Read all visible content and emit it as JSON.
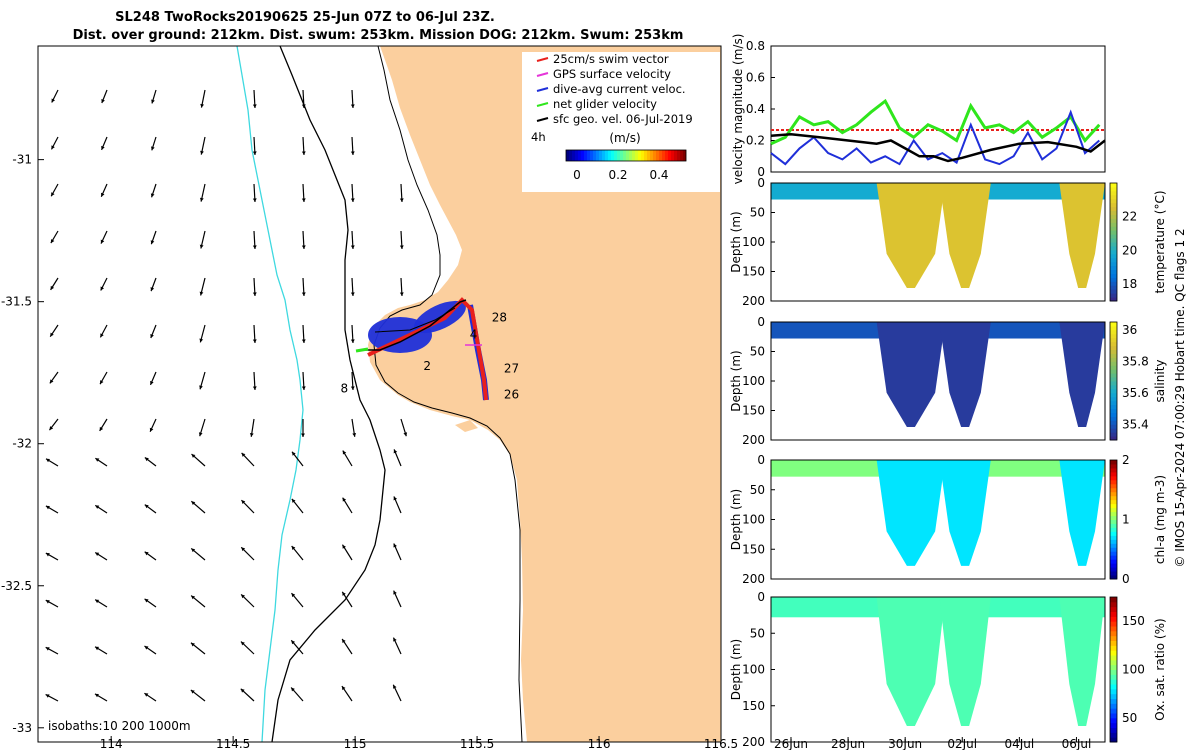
{
  "title": {
    "line1": "SL248 TwoRocks20190625 25-Jun 07Z to 06-Jul 23Z.",
    "line2": "Dist. over ground: 212km. Dist. swum: 253km. Mission DOG: 212km. Swum: 253km"
  },
  "colors": {
    "land": "#fbcf9e",
    "isobath_shallow": "#3fd9e0",
    "isobath_deep": "#000000",
    "swim_vector": "#e8201c",
    "gps_velocity": "#e535d8",
    "dive_avg_current": "#1f2fd9",
    "net_glider_velocity": "#2fe61c",
    "sfc_geo_velocity": "#000000"
  },
  "map": {
    "xlim": [
      113.7,
      116.5
    ],
    "ylim": [
      -33.05,
      -30.6
    ],
    "xticks": [
      114,
      114.5,
      115,
      115.5,
      116,
      116.5
    ],
    "xtick_labels": [
      "114",
      "114.5",
      "115",
      "115.5",
      "116",
      "116.5"
    ],
    "yticks": [
      -31,
      -31.5,
      -32,
      -32.5,
      -33
    ],
    "ytick_labels": [
      "-31",
      "-31.5",
      "-32",
      "-32.5",
      "-33"
    ],
    "legend": [
      "25cm/s swim vector",
      "GPS surface velocity",
      "dive-avg current veloc.",
      "net glider velocity",
      "sfc geo. vel. 06-Jul-2019"
    ],
    "colorbar_unit": "(m/s)",
    "colorbar_ticks": [
      "0",
      "0.2",
      "0.4"
    ],
    "time_step_label": "4h",
    "isobath_note": "isobaths:10   200  1000m",
    "track_day_labels": [
      {
        "text": "28",
        "lon": 115.56,
        "lat": -31.57
      },
      {
        "text": "4",
        "lon": 115.47,
        "lat": -31.63
      },
      {
        "text": "2",
        "lon": 115.28,
        "lat": -31.74
      },
      {
        "text": "27",
        "lon": 115.61,
        "lat": -31.75
      },
      {
        "text": "26",
        "lon": 115.61,
        "lat": -31.84
      },
      {
        "text": "8",
        "lon": 114.94,
        "lat": -31.82
      }
    ]
  },
  "chart_data": [
    {
      "type": "line",
      "title": "",
      "ylabel": "velocity magnitude (m/s)",
      "ylim": [
        0,
        0.8
      ],
      "yticks": [
        0,
        0.2,
        0.4,
        0.6,
        0.8
      ],
      "xlim_days": [
        25.3,
        37.0
      ],
      "series": [
        {
          "name": "net glider velocity",
          "x": [
            25.3,
            25.8,
            26.3,
            26.8,
            27.3,
            27.8,
            28.3,
            28.8,
            29.3,
            29.8,
            30.3,
            30.8,
            31.3,
            31.8,
            32.3,
            32.8,
            33.3,
            33.8,
            34.3,
            34.8,
            35.3,
            35.8,
            36.3,
            36.8
          ],
          "values": [
            0.18,
            0.22,
            0.35,
            0.3,
            0.32,
            0.25,
            0.3,
            0.38,
            0.45,
            0.28,
            0.22,
            0.3,
            0.26,
            0.2,
            0.42,
            0.28,
            0.3,
            0.25,
            0.32,
            0.22,
            0.28,
            0.35,
            0.2,
            0.3
          ]
        },
        {
          "name": "dive-avg current veloc.",
          "x": [
            25.3,
            25.8,
            26.3,
            26.8,
            27.3,
            27.8,
            28.3,
            28.8,
            29.3,
            29.8,
            30.3,
            30.8,
            31.3,
            31.8,
            32.3,
            32.8,
            33.3,
            33.8,
            34.3,
            34.8,
            35.3,
            35.8,
            36.3,
            36.8
          ],
          "values": [
            0.12,
            0.05,
            0.15,
            0.22,
            0.12,
            0.08,
            0.15,
            0.06,
            0.1,
            0.05,
            0.2,
            0.08,
            0.12,
            0.06,
            0.3,
            0.08,
            0.05,
            0.1,
            0.25,
            0.08,
            0.15,
            0.38,
            0.12,
            0.2
          ]
        },
        {
          "name": "sfc geo. vel.",
          "x": [
            25.3,
            26.0,
            27.0,
            28.0,
            29.0,
            29.5,
            30.0,
            30.5,
            31.0,
            31.5,
            32.0,
            33.0,
            34.0,
            35.0,
            36.0,
            36.5,
            37.0
          ],
          "values": [
            0.23,
            0.24,
            0.22,
            0.2,
            0.18,
            0.2,
            0.15,
            0.1,
            0.1,
            0.07,
            0.09,
            0.14,
            0.18,
            0.19,
            0.16,
            0.13,
            0.2
          ]
        }
      ]
    },
    {
      "type": "heatmap",
      "ylabel": "Depth (m)",
      "ylim": [
        200,
        0
      ],
      "yticks": [
        0,
        50,
        100,
        150,
        200
      ],
      "colorbar_label": "temperature (°C)",
      "colorbar_ticks": [
        "18",
        "20",
        "22"
      ],
      "clim": [
        17,
        24
      ]
    },
    {
      "type": "heatmap",
      "ylabel": "Depth (m)",
      "ylim": [
        200,
        0
      ],
      "yticks": [
        0,
        50,
        100,
        150,
        200
      ],
      "colorbar_label": "salinity",
      "colorbar_ticks": [
        "35.4",
        "35.6",
        "35.8",
        "36"
      ],
      "clim": [
        35.3,
        36.05
      ]
    },
    {
      "type": "heatmap",
      "ylabel": "Depth (m)",
      "ylim": [
        200,
        0
      ],
      "yticks": [
        0,
        50,
        100,
        150,
        200
      ],
      "colorbar_label": "chl-a (mg m-3)",
      "colorbar_ticks": [
        "0",
        "1",
        "2"
      ],
      "clim": [
        0,
        2
      ]
    },
    {
      "type": "heatmap",
      "ylabel": "Depth (m)",
      "ylim": [
        200,
        0
      ],
      "yticks": [
        0,
        50,
        100,
        150,
        200
      ],
      "colorbar_label": "Ox. sat. ratio (%)",
      "colorbar_ticks": [
        "50",
        "100",
        "150"
      ],
      "clim": [
        25,
        175
      ]
    }
  ],
  "time_axis": {
    "tick_days": [
      26,
      28,
      30,
      32,
      34,
      36
    ],
    "tick_labels": [
      "26Jun",
      "28Jun",
      "30Jun",
      "02Jul",
      "04Jul",
      "06Jul"
    ]
  },
  "side_note": "© IMOS 15-Apr-2024 07:00:29 Hobart time. QC flags 1  2"
}
